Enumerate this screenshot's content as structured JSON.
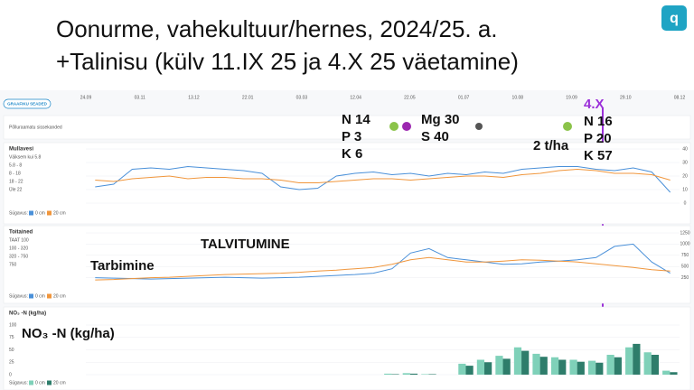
{
  "header": {
    "title_line1": "Oonurme, vahekultuur/hernes, 2024/25. a.",
    "title_line2": "+Talinisu (külv 11.IX 25 ja 4.X 25 väetamine)"
  },
  "dashboard": {
    "settings_button": "GRAAFIKU SEADED",
    "dates": [
      "24.09",
      "03.11",
      "13.12",
      "22.01",
      "03.03",
      "12.04",
      "22.05",
      "01.07",
      "10.08",
      "19.09",
      "29.10",
      "08.12"
    ],
    "field_log": "Põlluraamatu sissekanded"
  },
  "annotations": {
    "left_npk": [
      "N 14",
      "P 3",
      "K 6"
    ],
    "mg": "Mg 30",
    "s": "S 40",
    "manure": "2 t/ha",
    "date": "4.X",
    "right_npk": [
      "N 16",
      "P 20",
      "K 57"
    ],
    "winter": "TALVITUMINE",
    "consumption": "Tarbimine",
    "no3": "NO₃ -N (kg/ha)"
  },
  "chart_data": [
    {
      "type": "line",
      "title": "Mullavesi",
      "classes": [
        "Väiksem kui 5.8",
        "5.8 - 8",
        "8 - 18",
        "18 - 22",
        "Üle 22"
      ],
      "depth_label": "Sügavus:",
      "ylim": [
        0,
        40
      ],
      "yticks": [
        0,
        10,
        20,
        30,
        40
      ],
      "series": [
        {
          "name": "0 cm",
          "color": "#4a90d9",
          "values": [
            12,
            14,
            25,
            26,
            25,
            27,
            26,
            25,
            24,
            22,
            12,
            10,
            11,
            20,
            22,
            23,
            21,
            22,
            20,
            22,
            21,
            23,
            22,
            25,
            26,
            27,
            27,
            25,
            24,
            26,
            23,
            8
          ]
        },
        {
          "name": "20 cm",
          "color": "#f0963c",
          "values": [
            17,
            16,
            18,
            19,
            20,
            18,
            19,
            19,
            18,
            18,
            17,
            15,
            15,
            16,
            17,
            18,
            18,
            17,
            18,
            19,
            20,
            20,
            19,
            21,
            22,
            24,
            25,
            24,
            22,
            22,
            21,
            17
          ]
        }
      ]
    },
    {
      "type": "line",
      "title": "Toitained",
      "classes": [
        "TAAT 100",
        "100 - 320",
        "320 - 750",
        "750"
      ],
      "depth_label": "Sügavus:",
      "ylim": [
        0,
        1250
      ],
      "yticks": [
        250,
        500,
        750,
        1000,
        1250
      ],
      "series": [
        {
          "name": "0 cm",
          "color": "#4a90d9",
          "values": [
            250,
            240,
            230,
            220,
            230,
            240,
            250,
            260,
            250,
            240,
            250,
            260,
            280,
            300,
            320,
            350,
            450,
            800,
            900,
            700,
            650,
            600,
            550,
            560,
            600,
            620,
            650,
            700,
            950,
            1000,
            600,
            350
          ]
        },
        {
          "name": "20 cm",
          "color": "#f0963c",
          "values": [
            200,
            210,
            230,
            250,
            260,
            280,
            300,
            320,
            330,
            340,
            350,
            370,
            400,
            420,
            450,
            480,
            550,
            650,
            700,
            650,
            600,
            600,
            620,
            650,
            640,
            620,
            600,
            560,
            520,
            480,
            430,
            400
          ]
        }
      ]
    },
    {
      "type": "bar",
      "title": "NO₃ -N (kg/ha)",
      "depth_label": "Sügavus:",
      "ylim": [
        0,
        100
      ],
      "yticks": [
        0,
        25,
        50,
        75,
        100
      ],
      "series": [
        {
          "name": "0 cm",
          "color": "#7fd1b9",
          "values": [
            0,
            0,
            0,
            0,
            0,
            0,
            0,
            0,
            0,
            0,
            0,
            0,
            0,
            0,
            0,
            0,
            2,
            3,
            1,
            0,
            22,
            30,
            38,
            55,
            42,
            35,
            30,
            28,
            40,
            55,
            45,
            8
          ]
        },
        {
          "name": "20 cm",
          "color": "#2e7d6b",
          "values": [
            0,
            0,
            0,
            0,
            0,
            0,
            0,
            0,
            0,
            0,
            0,
            0,
            0,
            0,
            0,
            0,
            1,
            2,
            1,
            0,
            18,
            25,
            32,
            48,
            36,
            30,
            26,
            24,
            35,
            62,
            40,
            5
          ]
        }
      ]
    }
  ]
}
